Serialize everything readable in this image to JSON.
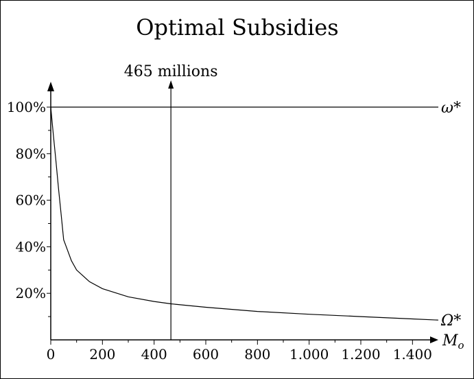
{
  "chart_data": {
    "type": "line",
    "title": "Optimal Subsidies",
    "xlabel": "M",
    "xlabel_sub": "o",
    "ylabel": "",
    "xlim": [
      0,
      1500
    ],
    "ylim": [
      0,
      110
    ],
    "x_ticks": [
      0,
      200,
      400,
      600,
      800,
      1000,
      1200,
      1400
    ],
    "x_tick_labels": [
      "0",
      "200",
      "400",
      "600",
      "800",
      "1.000",
      "1.200",
      "1.400"
    ],
    "y_ticks": [
      20,
      40,
      60,
      80,
      100
    ],
    "y_tick_labels": [
      "20%",
      "40%",
      "60%",
      "80%",
      "100%"
    ],
    "grid": false,
    "series": [
      {
        "name": "ω*",
        "x": [
          0,
          1500
        ],
        "y": [
          100,
          100
        ]
      },
      {
        "name": "Ω*",
        "x": [
          0,
          10,
          20,
          30,
          40,
          50,
          60,
          80,
          100,
          150,
          200,
          300,
          400,
          465,
          600,
          800,
          1000,
          1200,
          1400,
          1500
        ],
        "y": [
          100,
          88,
          77,
          65,
          54,
          43,
          40,
          34,
          30,
          25,
          22,
          18.5,
          16.5,
          15.5,
          14,
          12.2,
          11,
          10,
          9,
          8.5
        ]
      }
    ],
    "annotations": [
      {
        "text": "465 millions",
        "x": 465
      }
    ]
  }
}
